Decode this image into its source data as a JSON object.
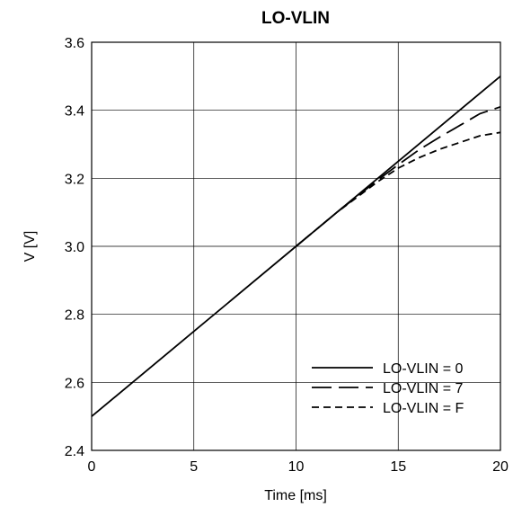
{
  "chart_data": {
    "type": "line",
    "title": "LO-VLIN",
    "xlabel": "Time [ms]",
    "ylabel": "V [V]",
    "xlim": [
      0,
      20
    ],
    "ylim": [
      2.4,
      3.6
    ],
    "xticks": [
      "0",
      "5",
      "10",
      "15",
      "20"
    ],
    "yticks": [
      "2.4",
      "2.6",
      "2.8",
      "3.0",
      "3.2",
      "3.4",
      "3.6"
    ],
    "grid": true,
    "legend_position": "bottom-right",
    "series": [
      {
        "name": "LO-VLIN = 0",
        "style": "solid",
        "x": [
          0,
          5,
          10,
          15,
          20
        ],
        "y": [
          2.5,
          2.75,
          3.0,
          3.25,
          3.5
        ]
      },
      {
        "name": "LO-VLIN = 7",
        "style": "long-dash",
        "x": [
          10,
          12,
          14,
          15,
          16,
          17,
          18,
          19,
          20
        ],
        "y": [
          3.0,
          3.1,
          3.195,
          3.24,
          3.283,
          3.32,
          3.355,
          3.39,
          3.41
        ]
      },
      {
        "name": "LO-VLIN = F",
        "style": "short-dash",
        "x": [
          10,
          12,
          14,
          15,
          16,
          17,
          18,
          19,
          20
        ],
        "y": [
          3.0,
          3.1,
          3.19,
          3.23,
          3.26,
          3.285,
          3.305,
          3.325,
          3.335
        ]
      }
    ]
  }
}
